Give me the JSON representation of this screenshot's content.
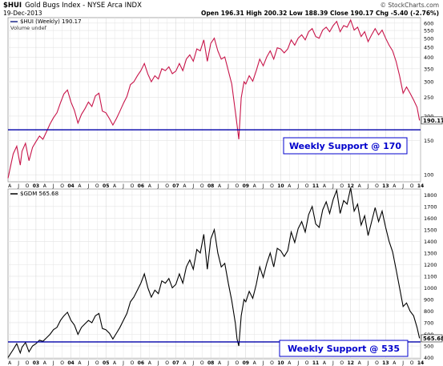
{
  "header": {
    "symbol": "$HUI",
    "name": "Gold Bugs Index - NYSE Arca INDX",
    "date": "19-Dec-2013",
    "credit": "© StockCharts.com",
    "ohlc": "Open 196.31  High 200.32  Low 188.39  Close 190.17  Chg -5.40 (-2.76%)"
  },
  "colors": {
    "frame": "#999999",
    "grid": "#e4e4e4",
    "support": "#0000aa",
    "hui_line_up": "#1f2a8c",
    "hui_line_down": "#c8154a",
    "gdm_line": "#000000",
    "label_text": "#0000cc",
    "price_tag_border": "#333333"
  },
  "chart_data": [
    {
      "type": "line",
      "legend": "$HUI (Weekly) 190.17",
      "legend_sub": "Volume undef",
      "x_axis": "year",
      "x_tick_labels": [
        "A",
        "J",
        "O",
        "03",
        "A",
        "J",
        "O",
        "04",
        "A",
        "J",
        "O",
        "05",
        "A",
        "J",
        "O",
        "06",
        "A",
        "J",
        "O",
        "07",
        "A",
        "J",
        "O",
        "08",
        "A",
        "J",
        "O",
        "09",
        "A",
        "J",
        "O",
        "10",
        "A",
        "J",
        "O",
        "11",
        "A",
        "J",
        "O",
        "12",
        "A",
        "J",
        "O",
        "13",
        "A",
        "J",
        "O",
        "14"
      ],
      "x_range": [
        2002.2,
        2014.0
      ],
      "ylim": [
        92,
        640
      ],
      "y_scale": "log",
      "y_ticks": [
        100,
        150,
        200,
        250,
        300,
        350,
        400,
        450,
        500,
        550,
        600
      ],
      "support_level": 170,
      "support_label": "Weekly Support @ 170",
      "last_value_tag": "190.17",
      "series": [
        {
          "x": [
            2002.2,
            2002.35,
            2002.45,
            2002.55,
            2002.6,
            2002.7,
            2002.8,
            2002.9,
            2003.0,
            2003.1,
            2003.2,
            2003.3,
            2003.4,
            2003.5,
            2003.6,
            2003.7,
            2003.8,
            2003.9,
            2004.0,
            2004.1,
            2004.2,
            2004.3,
            2004.4,
            2004.5,
            2004.6,
            2004.7,
            2004.8,
            2004.9,
            2005.0,
            2005.1,
            2005.2,
            2005.3,
            2005.4,
            2005.5,
            2005.6,
            2005.7,
            2005.8,
            2005.9,
            2006.0,
            2006.1,
            2006.2,
            2006.3,
            2006.4,
            2006.5,
            2006.6,
            2006.7,
            2006.8,
            2006.9,
            2007.0,
            2007.1,
            2007.2,
            2007.3,
            2007.4,
            2007.5,
            2007.6,
            2007.7,
            2007.8,
            2007.9,
            2008.0,
            2008.1,
            2008.2,
            2008.3,
            2008.4,
            2008.5,
            2008.6,
            2008.7,
            2008.75,
            2008.8,
            2008.87,
            2008.95,
            2009.0,
            2009.1,
            2009.2,
            2009.3,
            2009.4,
            2009.5,
            2009.6,
            2009.7,
            2009.8,
            2009.9,
            2010.0,
            2010.1,
            2010.2,
            2010.3,
            2010.4,
            2010.5,
            2010.6,
            2010.7,
            2010.8,
            2010.9,
            2011.0,
            2011.1,
            2011.2,
            2011.3,
            2011.4,
            2011.5,
            2011.6,
            2011.7,
            2011.8,
            2011.9,
            2012.0,
            2012.1,
            2012.2,
            2012.3,
            2012.4,
            2012.5,
            2012.6,
            2012.7,
            2012.8,
            2012.9,
            2013.0,
            2013.1,
            2013.2,
            2013.3,
            2013.4,
            2013.5,
            2013.6,
            2013.7,
            2013.8,
            2013.9,
            2013.97
          ],
          "values": [
            96,
            128,
            140,
            112,
            132,
            145,
            118,
            138,
            148,
            158,
            152,
            166,
            182,
            196,
            208,
            234,
            260,
            272,
            236,
            214,
            184,
            204,
            218,
            236,
            224,
            254,
            262,
            212,
            208,
            194,
            180,
            194,
            212,
            232,
            252,
            290,
            300,
            322,
            342,
            372,
            328,
            300,
            322,
            310,
            350,
            342,
            358,
            330,
            340,
            372,
            342,
            392,
            412,
            382,
            442,
            432,
            492,
            382,
            472,
            502,
            432,
            392,
            402,
            342,
            292,
            212,
            180,
            152,
            248,
            300,
            292,
            322,
            302,
            342,
            392,
            362,
            402,
            432,
            392,
            448,
            442,
            422,
            442,
            492,
            462,
            502,
            522,
            492,
            542,
            562,
            512,
            502,
            552,
            572,
            542,
            582,
            612,
            542,
            582,
            572,
            622,
            552,
            572,
            512,
            542,
            482,
            522,
            562,
            522,
            552,
            502,
            462,
            432,
            382,
            322,
            262,
            282,
            262,
            242,
            222,
            190
          ]
        }
      ]
    },
    {
      "type": "line",
      "legend": "$GDM 565.68",
      "x_axis": "year",
      "x_tick_labels": [
        "A",
        "J",
        "O",
        "03",
        "A",
        "J",
        "O",
        "04",
        "A",
        "J",
        "O",
        "05",
        "A",
        "J",
        "O",
        "06",
        "A",
        "J",
        "O",
        "07",
        "A",
        "J",
        "O",
        "08",
        "A",
        "J",
        "O",
        "09",
        "A",
        "J",
        "O",
        "10",
        "A",
        "J",
        "O",
        "11",
        "A",
        "J",
        "O",
        "12",
        "A",
        "J",
        "O",
        "13",
        "A",
        "J",
        "O",
        "14"
      ],
      "x_range": [
        2002.2,
        2014.0
      ],
      "ylim": [
        390,
        1850
      ],
      "y_scale": "linear",
      "y_ticks": [
        400,
        500,
        600,
        700,
        800,
        900,
        1000,
        1100,
        1200,
        1300,
        1400,
        1500,
        1600,
        1700,
        1800
      ],
      "support_level": 535,
      "support_label": "Weekly Support @ 535",
      "last_value_tag": "565.68",
      "series": [
        {
          "x": [
            2002.2,
            2002.35,
            2002.45,
            2002.55,
            2002.6,
            2002.7,
            2002.8,
            2002.9,
            2003.0,
            2003.1,
            2003.2,
            2003.3,
            2003.4,
            2003.5,
            2003.6,
            2003.7,
            2003.8,
            2003.9,
            2004.0,
            2004.1,
            2004.2,
            2004.3,
            2004.4,
            2004.5,
            2004.6,
            2004.7,
            2004.8,
            2004.9,
            2005.0,
            2005.1,
            2005.2,
            2005.3,
            2005.4,
            2005.5,
            2005.6,
            2005.7,
            2005.8,
            2005.9,
            2006.0,
            2006.1,
            2006.2,
            2006.3,
            2006.4,
            2006.5,
            2006.6,
            2006.7,
            2006.8,
            2006.9,
            2007.0,
            2007.1,
            2007.2,
            2007.3,
            2007.4,
            2007.5,
            2007.6,
            2007.7,
            2007.8,
            2007.9,
            2008.0,
            2008.1,
            2008.2,
            2008.3,
            2008.4,
            2008.5,
            2008.6,
            2008.7,
            2008.75,
            2008.8,
            2008.87,
            2008.95,
            2009.0,
            2009.1,
            2009.2,
            2009.3,
            2009.4,
            2009.5,
            2009.6,
            2009.7,
            2009.8,
            2009.9,
            2010.0,
            2010.1,
            2010.2,
            2010.3,
            2010.4,
            2010.5,
            2010.6,
            2010.7,
            2010.8,
            2010.9,
            2011.0,
            2011.1,
            2011.2,
            2011.3,
            2011.4,
            2011.5,
            2011.6,
            2011.7,
            2011.8,
            2011.9,
            2012.0,
            2012.1,
            2012.2,
            2012.3,
            2012.4,
            2012.5,
            2012.6,
            2012.7,
            2012.8,
            2012.9,
            2013.0,
            2013.1,
            2013.2,
            2013.3,
            2013.4,
            2013.5,
            2013.6,
            2013.7,
            2013.8,
            2013.9,
            2013.97
          ],
          "values": [
            400,
            470,
            520,
            440,
            490,
            530,
            450,
            500,
            520,
            550,
            540,
            570,
            600,
            640,
            660,
            720,
            760,
            790,
            720,
            680,
            600,
            660,
            690,
            720,
            700,
            760,
            780,
            650,
            640,
            610,
            560,
            610,
            660,
            720,
            780,
            880,
            920,
            980,
            1040,
            1120,
            1000,
            920,
            980,
            950,
            1060,
            1040,
            1080,
            1000,
            1030,
            1120,
            1040,
            1180,
            1240,
            1160,
            1330,
            1300,
            1460,
            1160,
            1420,
            1500,
            1300,
            1180,
            1210,
            1040,
            890,
            700,
            560,
            500,
            760,
            900,
            880,
            970,
            910,
            1030,
            1180,
            1090,
            1210,
            1300,
            1180,
            1340,
            1320,
            1270,
            1320,
            1480,
            1390,
            1510,
            1570,
            1480,
            1630,
            1700,
            1550,
            1520,
            1670,
            1740,
            1640,
            1760,
            1840,
            1640,
            1750,
            1720,
            1860,
            1660,
            1720,
            1540,
            1620,
            1450,
            1570,
            1690,
            1570,
            1660,
            1520,
            1400,
            1310,
            1160,
            1000,
            840,
            870,
            800,
            760,
            660,
            566
          ]
        }
      ]
    }
  ]
}
